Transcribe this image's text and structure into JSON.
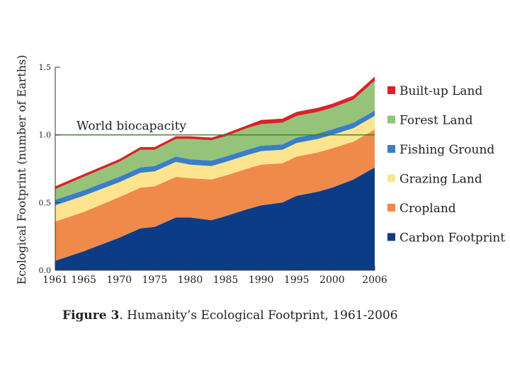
{
  "caption": {
    "label": "Figure 3",
    "text": ". Humanity’s Ecological Footprint, 1961-2006"
  },
  "chart_data": {
    "type": "area",
    "stacked": true,
    "title": "Humanity’s Ecological Footprint, 1961-2006",
    "ylabel": "Ecological Footprint (number of Earths)",
    "xlabel": "",
    "xlim": [
      1961,
      2006
    ],
    "ylim": [
      0,
      1.5
    ],
    "x_ticks": [
      1961,
      1965,
      1970,
      1975,
      1980,
      1985,
      1990,
      1995,
      2000,
      2006
    ],
    "y_ticks": [
      "0.0",
      "0.5",
      "1.0",
      "1.5"
    ],
    "x": [
      1961,
      1965,
      1970,
      1973,
      1975,
      1978,
      1980,
      1983,
      1985,
      1988,
      1990,
      1993,
      1995,
      1998,
      2000,
      2003,
      2006
    ],
    "series": [
      {
        "name": "Carbon Footprint",
        "color": "#0d3c87",
        "values": [
          0.07,
          0.14,
          0.24,
          0.31,
          0.32,
          0.39,
          0.39,
          0.37,
          0.4,
          0.45,
          0.48,
          0.5,
          0.55,
          0.58,
          0.61,
          0.67,
          0.76
        ]
      },
      {
        "name": "Cropland",
        "color": "#f08a4b",
        "values": [
          0.29,
          0.29,
          0.3,
          0.3,
          0.3,
          0.3,
          0.29,
          0.3,
          0.3,
          0.3,
          0.3,
          0.29,
          0.29,
          0.29,
          0.29,
          0.28,
          0.28
        ]
      },
      {
        "name": "Grazing Land",
        "color": "#fde58f",
        "values": [
          0.12,
          0.12,
          0.11,
          0.11,
          0.11,
          0.11,
          0.1,
          0.1,
          0.1,
          0.1,
          0.1,
          0.1,
          0.1,
          0.1,
          0.1,
          0.1,
          0.1
        ]
      },
      {
        "name": "Fishing Ground",
        "color": "#3a7dc9",
        "values": [
          0.04,
          0.04,
          0.04,
          0.04,
          0.04,
          0.04,
          0.04,
          0.04,
          0.04,
          0.04,
          0.04,
          0.04,
          0.04,
          0.04,
          0.04,
          0.04,
          0.04
        ]
      },
      {
        "name": "Forest Land",
        "color": "#96c37a",
        "values": [
          0.08,
          0.1,
          0.11,
          0.13,
          0.12,
          0.13,
          0.15,
          0.15,
          0.15,
          0.16,
          0.16,
          0.16,
          0.16,
          0.16,
          0.16,
          0.17,
          0.22
        ]
      },
      {
        "name": "Built-up Land",
        "color": "#d8232a",
        "values": [
          0.02,
          0.02,
          0.02,
          0.02,
          0.02,
          0.02,
          0.02,
          0.02,
          0.02,
          0.02,
          0.03,
          0.03,
          0.03,
          0.03,
          0.03,
          0.03,
          0.03
        ]
      }
    ],
    "legend_order": [
      "Built-up Land",
      "Forest Land",
      "Fishing Ground",
      "Grazing Land",
      "Cropland",
      "Carbon Footprint"
    ],
    "reference_line": {
      "label": "World biocapacity",
      "value": 1.0,
      "color": "#3f7a26"
    },
    "grid": false,
    "legend_position": "right"
  }
}
